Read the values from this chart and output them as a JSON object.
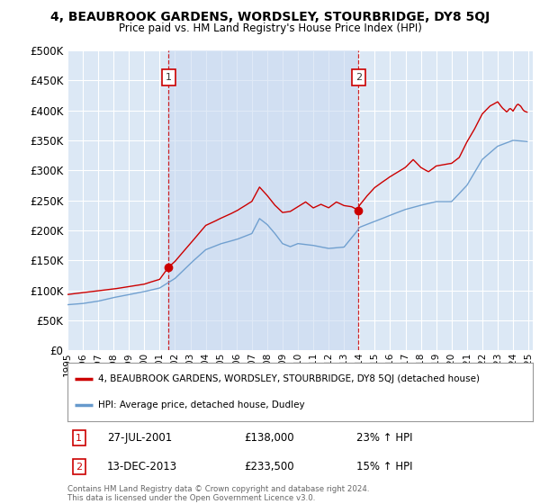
{
  "title": "4, BEAUBROOK GARDENS, WORDSLEY, STOURBRIDGE, DY8 5QJ",
  "subtitle": "Price paid vs. HM Land Registry's House Price Index (HPI)",
  "legend_line1": "4, BEAUBROOK GARDENS, WORDSLEY, STOURBRIDGE, DY8 5QJ (detached house)",
  "legend_line2": "HPI: Average price, detached house, Dudley",
  "annotation1_date": "27-JUL-2001",
  "annotation1_price": "£138,000",
  "annotation1_pct": "23% ↑ HPI",
  "annotation2_date": "13-DEC-2013",
  "annotation2_price": "£233,500",
  "annotation2_pct": "15% ↑ HPI",
  "footer": "Contains HM Land Registry data © Crown copyright and database right 2024.\nThis data is licensed under the Open Government Licence v3.0.",
  "red_color": "#cc0000",
  "blue_color": "#6699cc",
  "background_color": "#ffffff",
  "plot_bg_color": "#dce8f5",
  "grid_color": "#ffffff",
  "ylim": [
    0,
    500000
  ],
  "yticks": [
    0,
    50000,
    100000,
    150000,
    200000,
    250000,
    300000,
    350000,
    400000,
    450000,
    500000
  ],
  "sale1_x": 2001.57,
  "sale1_y": 138000,
  "sale2_x": 2013.95,
  "sale2_y": 233500,
  "xlim_left": 1995.0,
  "xlim_right": 2025.3
}
